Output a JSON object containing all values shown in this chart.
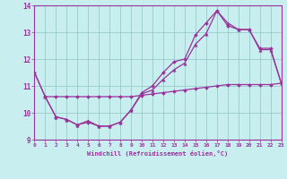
{
  "bg_color": "#c8eef0",
  "line_color": "#993399",
  "grid_color": "#99cccc",
  "xlim": [
    0,
    23
  ],
  "ylim": [
    9,
    14
  ],
  "xticks": [
    0,
    1,
    2,
    3,
    4,
    5,
    6,
    7,
    8,
    9,
    10,
    11,
    12,
    13,
    14,
    15,
    16,
    17,
    18,
    19,
    20,
    21,
    22,
    23
  ],
  "yticks": [
    9,
    10,
    11,
    12,
    13,
    14
  ],
  "xlabel": "Windchill (Refroidissement éolien,°C)",
  "series_upper_x": [
    0,
    1,
    2,
    3,
    4,
    5,
    6,
    7,
    8,
    9,
    10,
    11,
    12,
    13,
    14,
    15,
    16,
    17,
    18,
    19,
    20,
    21,
    22,
    23
  ],
  "series_upper_y": [
    11.5,
    10.6,
    9.85,
    9.75,
    9.55,
    9.65,
    9.5,
    9.5,
    9.65,
    10.1,
    10.75,
    11.0,
    11.5,
    11.9,
    12.0,
    12.9,
    13.35,
    13.8,
    13.25,
    13.1,
    13.1,
    12.4,
    12.4,
    11.1
  ],
  "series_mid_x": [
    0,
    1,
    2,
    3,
    4,
    5,
    6,
    7,
    8,
    9,
    10,
    11,
    12,
    13,
    14,
    15,
    16,
    17,
    18,
    19,
    20,
    21,
    22,
    23
  ],
  "series_mid_y": [
    11.5,
    10.6,
    9.85,
    9.75,
    9.55,
    9.7,
    9.5,
    9.5,
    9.65,
    10.1,
    10.7,
    10.85,
    11.25,
    11.6,
    11.85,
    12.55,
    12.95,
    13.8,
    13.35,
    13.1,
    13.1,
    12.35,
    12.35,
    11.1
  ],
  "series_lower_x": [
    1,
    2,
    3,
    4,
    5,
    6,
    7,
    8,
    9,
    10,
    11,
    12,
    13,
    14,
    15,
    16,
    17,
    18,
    19,
    20,
    21,
    22,
    23
  ],
  "series_lower_y": [
    10.6,
    10.6,
    10.6,
    10.6,
    10.6,
    10.6,
    10.6,
    10.6,
    10.6,
    10.65,
    10.7,
    10.75,
    10.8,
    10.85,
    10.9,
    10.95,
    11.0,
    11.05,
    11.05,
    11.05,
    11.05,
    11.05,
    11.1
  ]
}
